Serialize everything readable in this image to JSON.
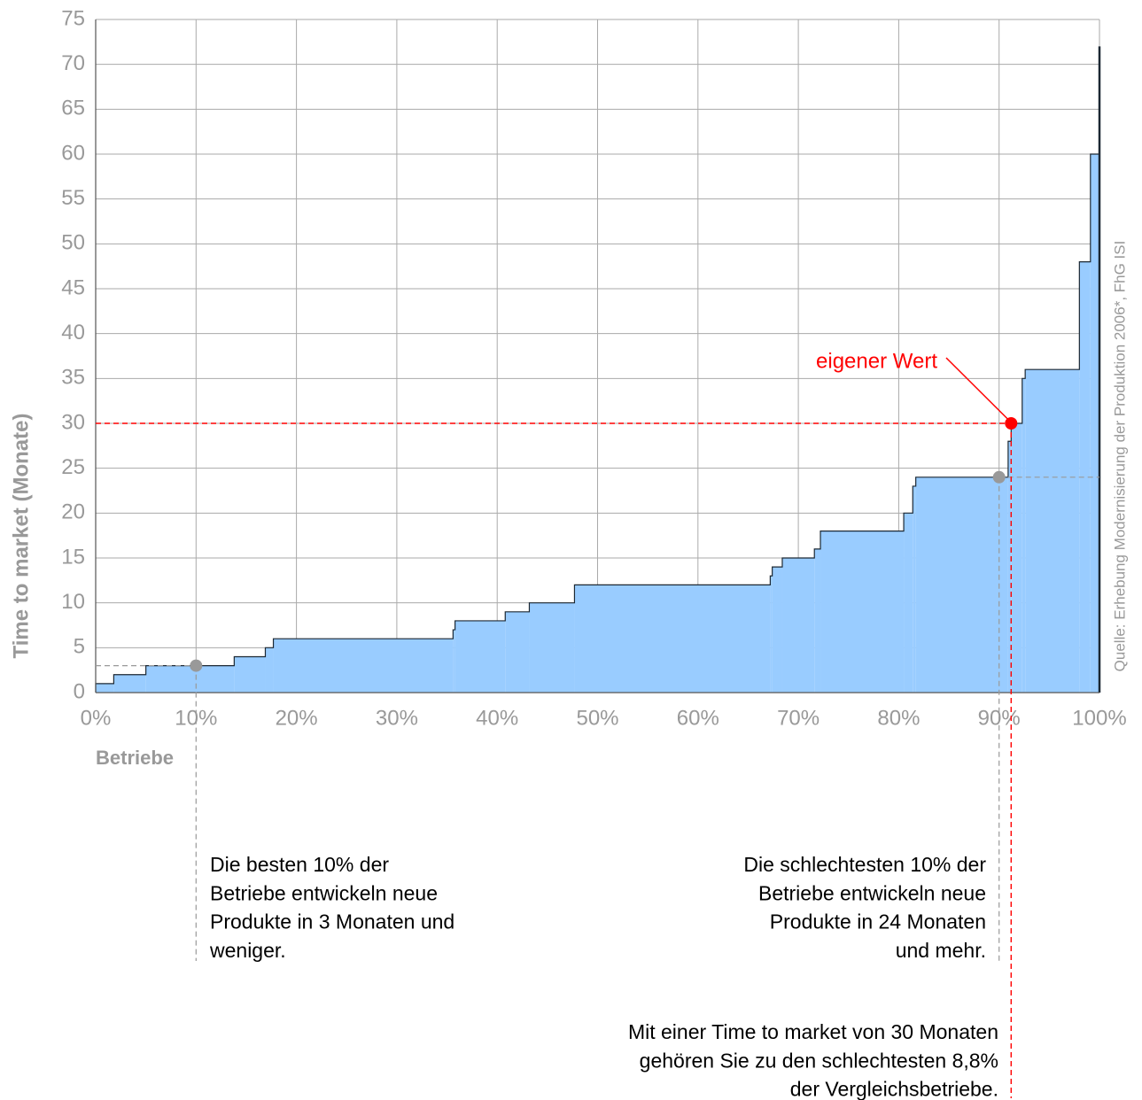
{
  "chart_data": {
    "type": "step-area",
    "y_label": "Time to market (Monate)",
    "x_label": "Betriebe",
    "source": "Quelle: Erhebung Modernisierung der Produktion 2006*, FhG ISI",
    "color": "#99ccff",
    "x": [
      0,
      1.8,
      5,
      13.8,
      16.9,
      17.7,
      35.6,
      35.8,
      40.8,
      43.2,
      47.7,
      67.2,
      67.4,
      68.4,
      71.6,
      72.2,
      80.5,
      81.4,
      81.7,
      90.9,
      91.2,
      92.3,
      92.6,
      98.0,
      99.1,
      100
    ],
    "values": [
      1,
      2,
      3,
      4,
      5,
      6,
      7,
      8,
      9,
      10,
      12,
      13,
      14,
      15,
      16,
      18,
      20,
      23,
      24,
      28,
      30,
      35,
      36,
      48,
      60,
      72
    ],
    "xlim": [
      0,
      100
    ],
    "ylim": [
      0,
      75
    ],
    "xticks": [
      {
        "value": 0,
        "label": "0%"
      },
      {
        "value": 10,
        "label": "10%"
      },
      {
        "value": 20,
        "label": "20%"
      },
      {
        "value": 30,
        "label": "30%"
      },
      {
        "value": 40,
        "label": "40%"
      },
      {
        "value": 50,
        "label": "50%"
      },
      {
        "value": 60,
        "label": "60%"
      },
      {
        "value": 70,
        "label": "70%"
      },
      {
        "value": 80,
        "label": "80%"
      },
      {
        "value": 90,
        "label": "90%"
      },
      {
        "value": 100,
        "label": "100%"
      }
    ],
    "yticks": [
      0,
      5,
      10,
      15,
      20,
      25,
      30,
      35,
      40,
      45,
      50,
      55,
      60,
      65,
      70,
      75
    ],
    "grid": true,
    "own_value": {
      "x": 91.2,
      "y": 30,
      "label": "eigener Wert",
      "color": "#ff0000"
    },
    "markers": [
      {
        "x": 10,
        "y": 3,
        "color": "#999999"
      },
      {
        "x": 90,
        "y": 24,
        "color": "#999999"
      }
    ],
    "annotations": [
      {
        "lines": [
          "Die besten 10% der",
          "Betriebe entwickeln neue",
          "Produkte in 3 Monaten und",
          "weniger."
        ]
      },
      {
        "lines": [
          "Die schlechtesten 10% der",
          "Betriebe entwickeln neue",
          "Produkte in 24 Monaten",
          "und mehr."
        ]
      },
      {
        "lines": [
          "Mit einer Time to market von 30 Monaten",
          "gehören Sie zu den schlechtesten 8,8%",
          "der Vergleichsbetriebe."
        ]
      }
    ]
  }
}
